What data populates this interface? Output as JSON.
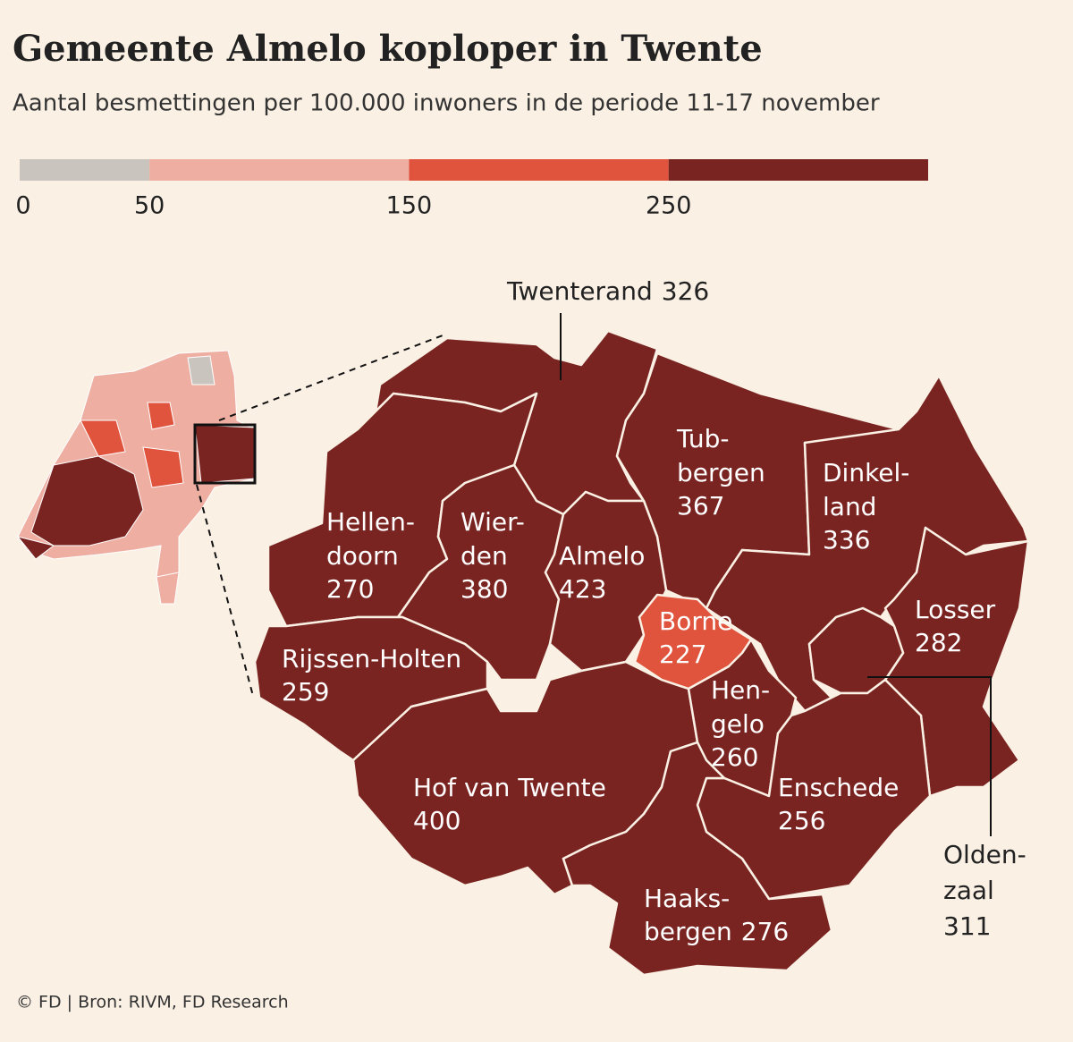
{
  "title": "Gemeente Almelo koploper in Twente",
  "subtitle": "Aantal besmettingen per 100.000 inwoners in de periode 11-17 november",
  "legend": {
    "ticks": [
      0,
      50,
      150,
      250
    ],
    "xlim": [
      0,
      350
    ],
    "colors": [
      "#c9c4bd",
      "#eeafa2",
      "#e0533c",
      "#7a2421"
    ]
  },
  "regions": [
    {
      "name_lines": [
        "Twenterand"
      ],
      "value": 326
    },
    {
      "name_lines": [
        "Tub-",
        "bergen"
      ],
      "value": 367
    },
    {
      "name_lines": [
        "Dinkel-",
        "land"
      ],
      "value": 336
    },
    {
      "name_lines": [
        "Losser"
      ],
      "value": 282
    },
    {
      "name_lines": [
        "Olden-",
        "zaal"
      ],
      "value": 311
    },
    {
      "name_lines": [
        "Hellen-",
        "doorn"
      ],
      "value": 270
    },
    {
      "name_lines": [
        "Wier-",
        "den"
      ],
      "value": 380
    },
    {
      "name_lines": [
        "Almelo"
      ],
      "value": 423
    },
    {
      "name_lines": [
        "Borne"
      ],
      "value": 227
    },
    {
      "name_lines": [
        "Rijssen-Holten"
      ],
      "value": 259
    },
    {
      "name_lines": [
        "Hof van Twente"
      ],
      "value": 400
    },
    {
      "name_lines": [
        "Hen-",
        "gelo"
      ],
      "value": 260
    },
    {
      "name_lines": [
        "Enschede"
      ],
      "value": 256
    },
    {
      "name_lines": [
        "Haaks-",
        "bergen"
      ],
      "value": 276
    }
  ],
  "source": "© FD | Bron: RIVM, FD Research"
}
